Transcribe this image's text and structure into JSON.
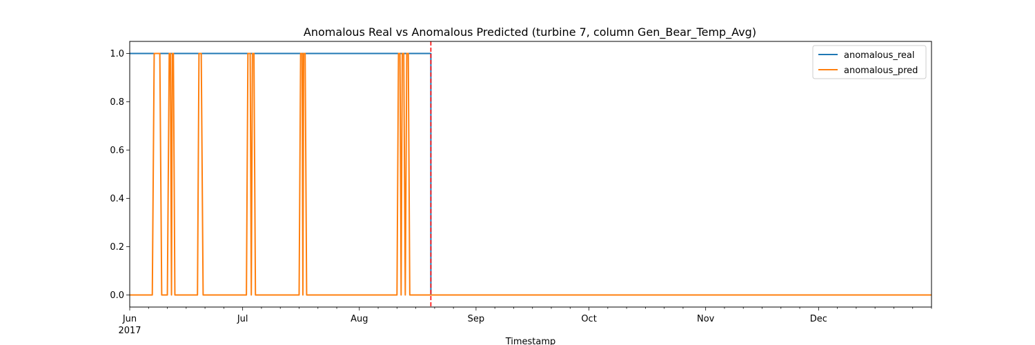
{
  "chart_data": {
    "type": "line",
    "title": "Anomalous Real vs Anomalous Predicted (turbine 7, column Gen_Bear_Temp_Avg)",
    "xlabel": "Timestamp",
    "ylabel": "",
    "xlim": [
      "2017-06-01",
      "2017-12-31"
    ],
    "ylim": [
      -0.05,
      1.05
    ],
    "grid": false,
    "legend_position": "top-right",
    "x_ticks_major": [
      {
        "date": "2017-06-01",
        "label": "Jun",
        "sublabel": "2017"
      },
      {
        "date": "2017-07-01",
        "label": "Jul",
        "sublabel": ""
      },
      {
        "date": "2017-08-01",
        "label": "Aug",
        "sublabel": ""
      },
      {
        "date": "2017-09-01",
        "label": "Sep",
        "sublabel": ""
      },
      {
        "date": "2017-10-01",
        "label": "Oct",
        "sublabel": ""
      },
      {
        "date": "2017-11-01",
        "label": "Nov",
        "sublabel": ""
      },
      {
        "date": "2017-12-01",
        "label": "Dec",
        "sublabel": ""
      }
    ],
    "x_ticks_minor": [
      "2017-06-06",
      "2017-06-11",
      "2017-06-16",
      "2017-06-21",
      "2017-06-26",
      "2017-07-06",
      "2017-07-11",
      "2017-07-16",
      "2017-07-21",
      "2017-07-26",
      "2017-08-06",
      "2017-08-11",
      "2017-08-16",
      "2017-08-21",
      "2017-08-26",
      "2017-09-06",
      "2017-09-11",
      "2017-09-16",
      "2017-09-21",
      "2017-09-26",
      "2017-10-06",
      "2017-10-11",
      "2017-10-16",
      "2017-10-21",
      "2017-10-26",
      "2017-11-06",
      "2017-11-11",
      "2017-11-16",
      "2017-11-21",
      "2017-11-26",
      "2017-12-06",
      "2017-12-11",
      "2017-12-16",
      "2017-12-21",
      "2017-12-26",
      "2017-12-31"
    ],
    "y_ticks": [
      {
        "value": 0.0,
        "label": "0.0"
      },
      {
        "value": 0.2,
        "label": "0.2"
      },
      {
        "value": 0.4,
        "label": "0.4"
      },
      {
        "value": 0.6,
        "label": "0.6"
      },
      {
        "value": 0.8,
        "label": "0.8"
      },
      {
        "value": 1.0,
        "label": "1.0"
      }
    ],
    "series": [
      {
        "name": "anomalous_real",
        "color": "#1f77b4",
        "points": [
          [
            "2017-06-01",
            1
          ],
          [
            "2017-08-20",
            1
          ],
          [
            "2017-08-20",
            0
          ],
          [
            "2017-12-31",
            0
          ]
        ]
      },
      {
        "name": "anomalous_pred",
        "color": "#ff7f0e",
        "points": [
          [
            "2017-06-01",
            0
          ],
          [
            "2017-06-07",
            0
          ],
          [
            "2017-06-07.5",
            1
          ],
          [
            "2017-06-09",
            1
          ],
          [
            "2017-06-09.5",
            0
          ],
          [
            "2017-06-11",
            0
          ],
          [
            "2017-06-11.5",
            1
          ],
          [
            "2017-06-11.8",
            1
          ],
          [
            "2017-06-12.1",
            0
          ],
          [
            "2017-06-12.3",
            1
          ],
          [
            "2017-06-12.6",
            1
          ],
          [
            "2017-06-13",
            0
          ],
          [
            "2017-06-19",
            0
          ],
          [
            "2017-06-19.4",
            1
          ],
          [
            "2017-06-20",
            1
          ],
          [
            "2017-06-20.5",
            0
          ],
          [
            "2017-07-02",
            0
          ],
          [
            "2017-07-02.4",
            1
          ],
          [
            "2017-07-03",
            1
          ],
          [
            "2017-07-03.3",
            0
          ],
          [
            "2017-07-03.6",
            1
          ],
          [
            "2017-07-04",
            1
          ],
          [
            "2017-07-04.4",
            0
          ],
          [
            "2017-07-16",
            0
          ],
          [
            "2017-07-16.4",
            1
          ],
          [
            "2017-07-16.8",
            1
          ],
          [
            "2017-07-17",
            0
          ],
          [
            "2017-07-17.2",
            1
          ],
          [
            "2017-07-17.6",
            1
          ],
          [
            "2017-07-18",
            0
          ],
          [
            "2017-08-11",
            0
          ],
          [
            "2017-08-11.4",
            1
          ],
          [
            "2017-08-11.8",
            1
          ],
          [
            "2017-08-12.1",
            0
          ],
          [
            "2017-08-12.4",
            1
          ],
          [
            "2017-08-12.8",
            1
          ],
          [
            "2017-08-13.2",
            0
          ],
          [
            "2017-08-13.6",
            1
          ],
          [
            "2017-08-14",
            1
          ],
          [
            "2017-08-14.4",
            0
          ],
          [
            "2017-12-31",
            0
          ]
        ]
      }
    ],
    "annotations": [
      {
        "type": "vline",
        "x": "2017-08-20",
        "color": "#ff0000",
        "style": "dashed"
      }
    ]
  }
}
